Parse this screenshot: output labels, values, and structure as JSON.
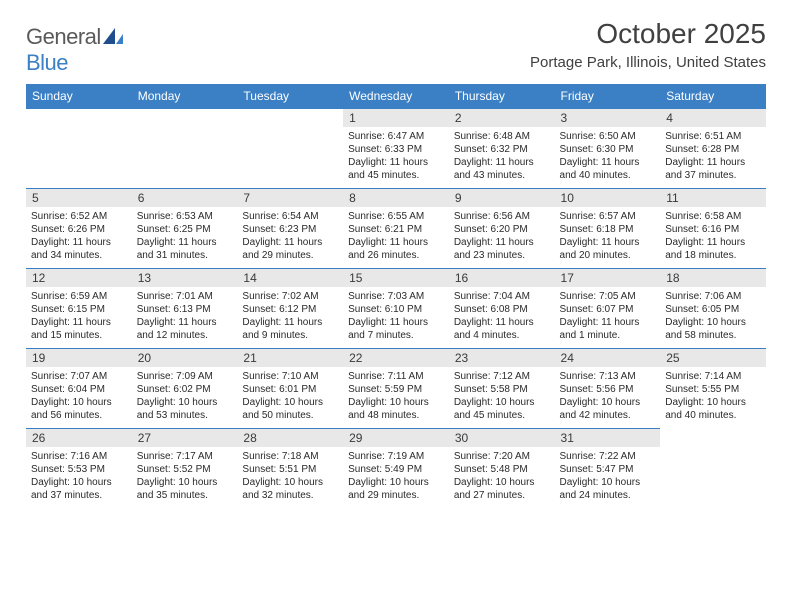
{
  "logo": {
    "gray": "General",
    "blue": "Blue"
  },
  "title": "October 2025",
  "location": "Portage Park, Illinois, United States",
  "colors": {
    "header_bg": "#3b7fc4",
    "header_fg": "#ffffff",
    "daynum_bg": "#e8e8e8",
    "border": "#3b7fc4",
    "text": "#2a2a2a",
    "title_text": "#404040"
  },
  "day_headers": [
    "Sunday",
    "Monday",
    "Tuesday",
    "Wednesday",
    "Thursday",
    "Friday",
    "Saturday"
  ],
  "weeks": [
    [
      null,
      null,
      null,
      {
        "n": "1",
        "sr": "6:47 AM",
        "ss": "6:33 PM",
        "dl": "Daylight: 11 hours and 45 minutes."
      },
      {
        "n": "2",
        "sr": "6:48 AM",
        "ss": "6:32 PM",
        "dl": "Daylight: 11 hours and 43 minutes."
      },
      {
        "n": "3",
        "sr": "6:50 AM",
        "ss": "6:30 PM",
        "dl": "Daylight: 11 hours and 40 minutes."
      },
      {
        "n": "4",
        "sr": "6:51 AM",
        "ss": "6:28 PM",
        "dl": "Daylight: 11 hours and 37 minutes."
      }
    ],
    [
      {
        "n": "5",
        "sr": "6:52 AM",
        "ss": "6:26 PM",
        "dl": "Daylight: 11 hours and 34 minutes."
      },
      {
        "n": "6",
        "sr": "6:53 AM",
        "ss": "6:25 PM",
        "dl": "Daylight: 11 hours and 31 minutes."
      },
      {
        "n": "7",
        "sr": "6:54 AM",
        "ss": "6:23 PM",
        "dl": "Daylight: 11 hours and 29 minutes."
      },
      {
        "n": "8",
        "sr": "6:55 AM",
        "ss": "6:21 PM",
        "dl": "Daylight: 11 hours and 26 minutes."
      },
      {
        "n": "9",
        "sr": "6:56 AM",
        "ss": "6:20 PM",
        "dl": "Daylight: 11 hours and 23 minutes."
      },
      {
        "n": "10",
        "sr": "6:57 AM",
        "ss": "6:18 PM",
        "dl": "Daylight: 11 hours and 20 minutes."
      },
      {
        "n": "11",
        "sr": "6:58 AM",
        "ss": "6:16 PM",
        "dl": "Daylight: 11 hours and 18 minutes."
      }
    ],
    [
      {
        "n": "12",
        "sr": "6:59 AM",
        "ss": "6:15 PM",
        "dl": "Daylight: 11 hours and 15 minutes."
      },
      {
        "n": "13",
        "sr": "7:01 AM",
        "ss": "6:13 PM",
        "dl": "Daylight: 11 hours and 12 minutes."
      },
      {
        "n": "14",
        "sr": "7:02 AM",
        "ss": "6:12 PM",
        "dl": "Daylight: 11 hours and 9 minutes."
      },
      {
        "n": "15",
        "sr": "7:03 AM",
        "ss": "6:10 PM",
        "dl": "Daylight: 11 hours and 7 minutes."
      },
      {
        "n": "16",
        "sr": "7:04 AM",
        "ss": "6:08 PM",
        "dl": "Daylight: 11 hours and 4 minutes."
      },
      {
        "n": "17",
        "sr": "7:05 AM",
        "ss": "6:07 PM",
        "dl": "Daylight: 11 hours and 1 minute."
      },
      {
        "n": "18",
        "sr": "7:06 AM",
        "ss": "6:05 PM",
        "dl": "Daylight: 10 hours and 58 minutes."
      }
    ],
    [
      {
        "n": "19",
        "sr": "7:07 AM",
        "ss": "6:04 PM",
        "dl": "Daylight: 10 hours and 56 minutes."
      },
      {
        "n": "20",
        "sr": "7:09 AM",
        "ss": "6:02 PM",
        "dl": "Daylight: 10 hours and 53 minutes."
      },
      {
        "n": "21",
        "sr": "7:10 AM",
        "ss": "6:01 PM",
        "dl": "Daylight: 10 hours and 50 minutes."
      },
      {
        "n": "22",
        "sr": "7:11 AM",
        "ss": "5:59 PM",
        "dl": "Daylight: 10 hours and 48 minutes."
      },
      {
        "n": "23",
        "sr": "7:12 AM",
        "ss": "5:58 PM",
        "dl": "Daylight: 10 hours and 45 minutes."
      },
      {
        "n": "24",
        "sr": "7:13 AM",
        "ss": "5:56 PM",
        "dl": "Daylight: 10 hours and 42 minutes."
      },
      {
        "n": "25",
        "sr": "7:14 AM",
        "ss": "5:55 PM",
        "dl": "Daylight: 10 hours and 40 minutes."
      }
    ],
    [
      {
        "n": "26",
        "sr": "7:16 AM",
        "ss": "5:53 PM",
        "dl": "Daylight: 10 hours and 37 minutes."
      },
      {
        "n": "27",
        "sr": "7:17 AM",
        "ss": "5:52 PM",
        "dl": "Daylight: 10 hours and 35 minutes."
      },
      {
        "n": "28",
        "sr": "7:18 AM",
        "ss": "5:51 PM",
        "dl": "Daylight: 10 hours and 32 minutes."
      },
      {
        "n": "29",
        "sr": "7:19 AM",
        "ss": "5:49 PM",
        "dl": "Daylight: 10 hours and 29 minutes."
      },
      {
        "n": "30",
        "sr": "7:20 AM",
        "ss": "5:48 PM",
        "dl": "Daylight: 10 hours and 27 minutes."
      },
      {
        "n": "31",
        "sr": "7:22 AM",
        "ss": "5:47 PM",
        "dl": "Daylight: 10 hours and 24 minutes."
      },
      null
    ]
  ],
  "labels": {
    "sunrise": "Sunrise:",
    "sunset": "Sunset:"
  }
}
